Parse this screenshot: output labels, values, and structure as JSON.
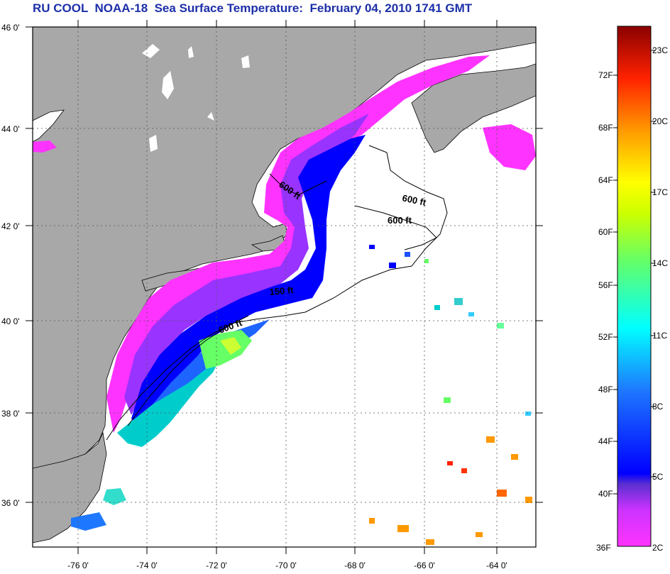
{
  "title": "RU COOL  NOAA-18  Sea Surface Temperature:  February 04, 2010 1741 GMT",
  "lat_labels": [
    "46 0'",
    "44 0'",
    "42 0'",
    "40 0'",
    "38 0'",
    "36 0'"
  ],
  "lon_labels": [
    "-76 0'",
    "-74 0'",
    "-72 0'",
    "-70 0'",
    "-68 0'",
    "-66 0'",
    "-64 0'"
  ],
  "contour_labels": [
    "600 ft",
    "600 ft",
    "600 ft",
    "150 ft",
    "600 ft"
  ],
  "colorbar": {
    "fahrenheit": [
      "72F",
      "68F",
      "64F",
      "60F",
      "56F",
      "52F",
      "48F",
      "44F",
      "40F",
      "36F"
    ],
    "celsius": [
      "23C",
      "20C",
      "17C",
      "14C",
      "11C",
      "8C",
      "5C",
      "2C"
    ]
  },
  "colors": {
    "land": "#a8a8a8",
    "ocean_cloud": "#ffffff",
    "title": "#1c2fa8"
  }
}
